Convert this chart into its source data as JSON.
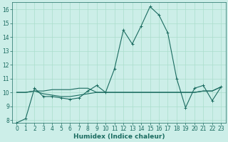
{
  "title": "",
  "xlabel": "Humidex (Indice chaleur)",
  "ylabel": "",
  "bg_color": "#cceee8",
  "grid_color": "#aaddcc",
  "line_color": "#1a6b60",
  "xlim": [
    -0.5,
    23.5
  ],
  "ylim": [
    7.8,
    16.5
  ],
  "yticks": [
    8,
    9,
    10,
    11,
    12,
    13,
    14,
    15,
    16
  ],
  "xticks": [
    0,
    1,
    2,
    3,
    4,
    5,
    6,
    7,
    8,
    9,
    10,
    11,
    12,
    13,
    14,
    15,
    16,
    17,
    18,
    19,
    20,
    21,
    22,
    23
  ],
  "line1_x": [
    0,
    1,
    2,
    3,
    4,
    5,
    6,
    7,
    8,
    9,
    10,
    11,
    12,
    13,
    14,
    15,
    16,
    17,
    18,
    19,
    20,
    21,
    22,
    23
  ],
  "line1_y": [
    7.8,
    8.1,
    10.3,
    9.7,
    9.7,
    9.6,
    9.5,
    9.6,
    10.1,
    10.5,
    10.0,
    11.7,
    14.5,
    13.5,
    14.8,
    16.2,
    15.6,
    14.3,
    11.0,
    8.9,
    10.3,
    10.5,
    9.4,
    10.4
  ],
  "line2_x": [
    0,
    1,
    2,
    3,
    4,
    5,
    6,
    7,
    8,
    9,
    10,
    11,
    12,
    13,
    14,
    15,
    16,
    17,
    18,
    19,
    20,
    21,
    22,
    23
  ],
  "line2_y": [
    10.0,
    10.0,
    10.1,
    9.9,
    9.8,
    9.7,
    9.7,
    9.8,
    9.9,
    10.0,
    10.0,
    10.0,
    10.0,
    10.0,
    10.0,
    10.0,
    10.0,
    10.0,
    10.0,
    10.0,
    10.0,
    10.1,
    10.1,
    10.4
  ],
  "line3_x": [
    0,
    1,
    2,
    3,
    4,
    5,
    6,
    7,
    8,
    9,
    10,
    11,
    12,
    13,
    14,
    15,
    16,
    17,
    18,
    19,
    20,
    21,
    22,
    23
  ],
  "line3_y": [
    10.0,
    10.0,
    10.1,
    10.1,
    10.2,
    10.2,
    10.2,
    10.3,
    10.3,
    10.0,
    10.0,
    10.0,
    10.0,
    10.0,
    10.0,
    10.0,
    10.0,
    10.0,
    10.0,
    10.0,
    10.0,
    10.1,
    10.1,
    10.4
  ],
  "marker": "+",
  "marker_size": 3,
  "linewidth": 0.8,
  "tick_fontsize": 5.5,
  "xlabel_fontsize": 6.5
}
